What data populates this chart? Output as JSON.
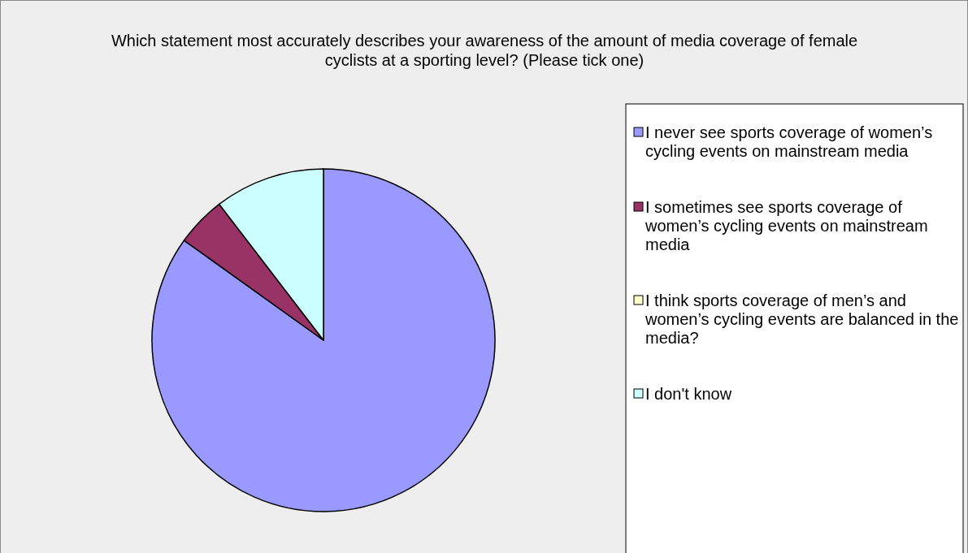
{
  "chart_data": {
    "type": "pie",
    "title": "Which statement most accurately describes your awareness of the amount of media coverage of female cyclists at a sporting level? (Please tick one)",
    "categories": [
      "I never see sports coverage of women’s cycling events on mainstream media",
      "I sometimes see sports coverage of women’s cycling events on mainstream media",
      "I think sports coverage of men’s and women’s cycling events are balanced in the media?",
      "I don't know"
    ],
    "values": [
      84.9,
      4.7,
      0,
      10.4
    ],
    "colors": [
      "#9999ff",
      "#993366",
      "#ffffcc",
      "#ccffff"
    ],
    "legend": "right"
  }
}
